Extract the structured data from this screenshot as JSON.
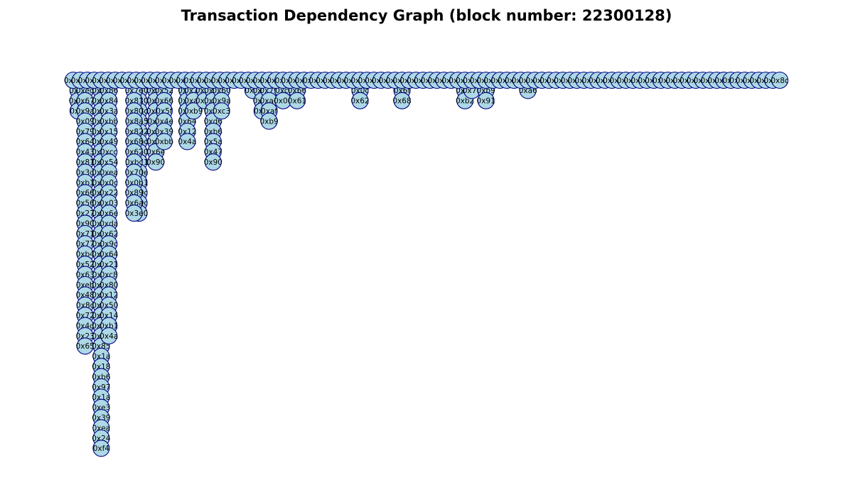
{
  "title": "Transaction Dependency Graph (block number: 22300128)",
  "colors": {
    "node_fill": "#add8e6",
    "node_stroke": "#000080",
    "text": "#000000"
  },
  "graph": {
    "roots": [
      "0x67",
      "0x20",
      "0x6e",
      "0x76",
      "0x78",
      "0x6b",
      "0xb6",
      "0x40",
      "0x6b",
      "0x6d",
      "0x0e",
      "0x20",
      "0x48",
      "0xa5",
      "0x2a",
      "0xa9",
      "0x77",
      "0x3f",
      "0x94",
      "0xd8",
      "0x46",
      "0xe7",
      "0x08",
      "0x45",
      "0x3d",
      "0xa1",
      "0x90",
      "0x80",
      "0x38",
      "0x63",
      "0x7f",
      "0x6c",
      "0x3a",
      "0x2d",
      "0x1f",
      "0x10",
      "0x77",
      "0x13",
      "0xb3",
      "0x32",
      "0xa7",
      "0x11",
      "0x9c",
      "0x4b",
      "0x76",
      "0x60",
      "0x2d",
      "0xb5",
      "0x83",
      "0xd4",
      "0x00",
      "0x93",
      "0x44",
      "0xd2",
      "0x0d",
      "0xa3",
      "0x8b",
      "0x0c",
      "0x4a",
      "0x49",
      "0x04",
      "0x8e",
      "0x66",
      "0x07",
      "0x3b",
      "0x0a",
      "0xb5",
      "0x40",
      "0x7a",
      "0xd2",
      "0x0c",
      "0xa5",
      "0x8b",
      "0x4e",
      "0xdc",
      "0x16",
      "0x55",
      "0x2c",
      "0x8b",
      "0x2c",
      "0x89",
      "0x6c",
      "0x0c",
      "0x3c",
      "0x7f",
      "0x21",
      "0x4e",
      "0xc5",
      "0x0e",
      "0xd1",
      "0x48",
      "0x25",
      "0x77",
      "0x48",
      "0x2f",
      "0x6f",
      "0x0a",
      "0x3a",
      "0xb1",
      "0xe0",
      "0x5c",
      "0x8c"
    ],
    "children": [
      [
        "0x6c",
        "0x25",
        "0x0f"
      ],
      [
        "0xed",
        "0x67",
        "0x9a",
        "0x09",
        "0x79",
        "0x64",
        "0x43",
        "0x81",
        "0x3d",
        "0xb1",
        "0x66",
        "0x56",
        "0x27",
        "0x90",
        "0x71",
        "0x77",
        "0xb4",
        "0x52",
        "0x63",
        "0xeb",
        "0x48",
        "0x8c",
        "0x72",
        "0x4d",
        "0x23",
        "0x65"
      ],
      [
        "0x52",
        "0x85",
        "0x3a",
        "0xb8",
        "0x8d",
        "0x49",
        "0x09",
        "0x94",
        "0x32",
        "0x9c",
        "0x22",
        "0x03",
        "0x6e",
        "0xda",
        "0x62",
        "0x9c",
        "0x64",
        "0x21",
        "0xc8",
        "0x80",
        "0x12",
        "0x50",
        "0x14",
        "0xb1",
        "0x4a",
        "0x85",
        "0x1a",
        "0x18",
        "0xb6",
        "0x97",
        "0x1a",
        "0xe3",
        "0x39",
        "0xea",
        "0x24",
        "0xf4"
      ],
      [
        "0x86",
        "0x84",
        "0x3a",
        "0xbb",
        "0x15",
        "0x49",
        "0xcc",
        "0x54",
        "0xea",
        "0x0c",
        "0x22",
        "0x03",
        "0x6e",
        "0xda",
        "0x62",
        "0x9c",
        "0x64",
        "0x21",
        "0xc8",
        "0x80",
        "0x12",
        "0x50",
        "0x14",
        "0xb1",
        "0x4a"
      ],
      [
        "0x60",
        "0x30",
        "0x8c",
        "0x55",
        "0x02",
        "0xbc",
        "0x60",
        "0x71",
        "0x0e",
        "0x11",
        "0x0c",
        "0x9c",
        "0xe0"
      ],
      [
        "0x7e",
        "0x81",
        "0x80",
        "0x8a",
        "0x82",
        "0x68",
        "0x62",
        "0xbc",
        "0x70",
        "0x0b",
        "0x89",
        "0x6a",
        "0x3e"
      ],
      [
        "0x74",
        "0xc9",
        "0x87",
        "0x5f",
        "0x7a",
        "0xc5",
        "0x6e",
        "0x90"
      ],
      [
        "0x52",
        "0x66",
        "0x5f",
        "0x4e",
        "0x39",
        "0xbb"
      ],
      [
        "0xb6",
        "0x02",
        "0x08",
        "0x64",
        "0x12",
        "0x4a"
      ],
      [
        "0x7b",
        "0xa0",
        "0xb9"
      ],
      [
        "0x10",
        "0xbd"
      ],
      [
        "0xc0",
        "0xe4",
        "0x07",
        "0xd6",
        "0xb6",
        "0x5a",
        "0x47",
        "0x90"
      ],
      [
        "0x60",
        "0x9a",
        "0xc3"
      ],
      [
        "0x8f"
      ],
      [
        "0xb5",
        "0x39",
        "0x0f"
      ],
      [
        "0x79",
        "0xae",
        "0xaf",
        "0xb9"
      ],
      [
        "0xcf",
        "0x04"
      ],
      [
        "0x66",
        "0x61"
      ],
      [
        "0x0c",
        "0x62"
      ],
      [
        "0x6f",
        "0x68"
      ],
      [
        "0x6e",
        "0xb2"
      ],
      [
        "0x71"
      ],
      [
        "0xb9",
        "0x91"
      ],
      [
        "0xa6"
      ]
    ]
  }
}
